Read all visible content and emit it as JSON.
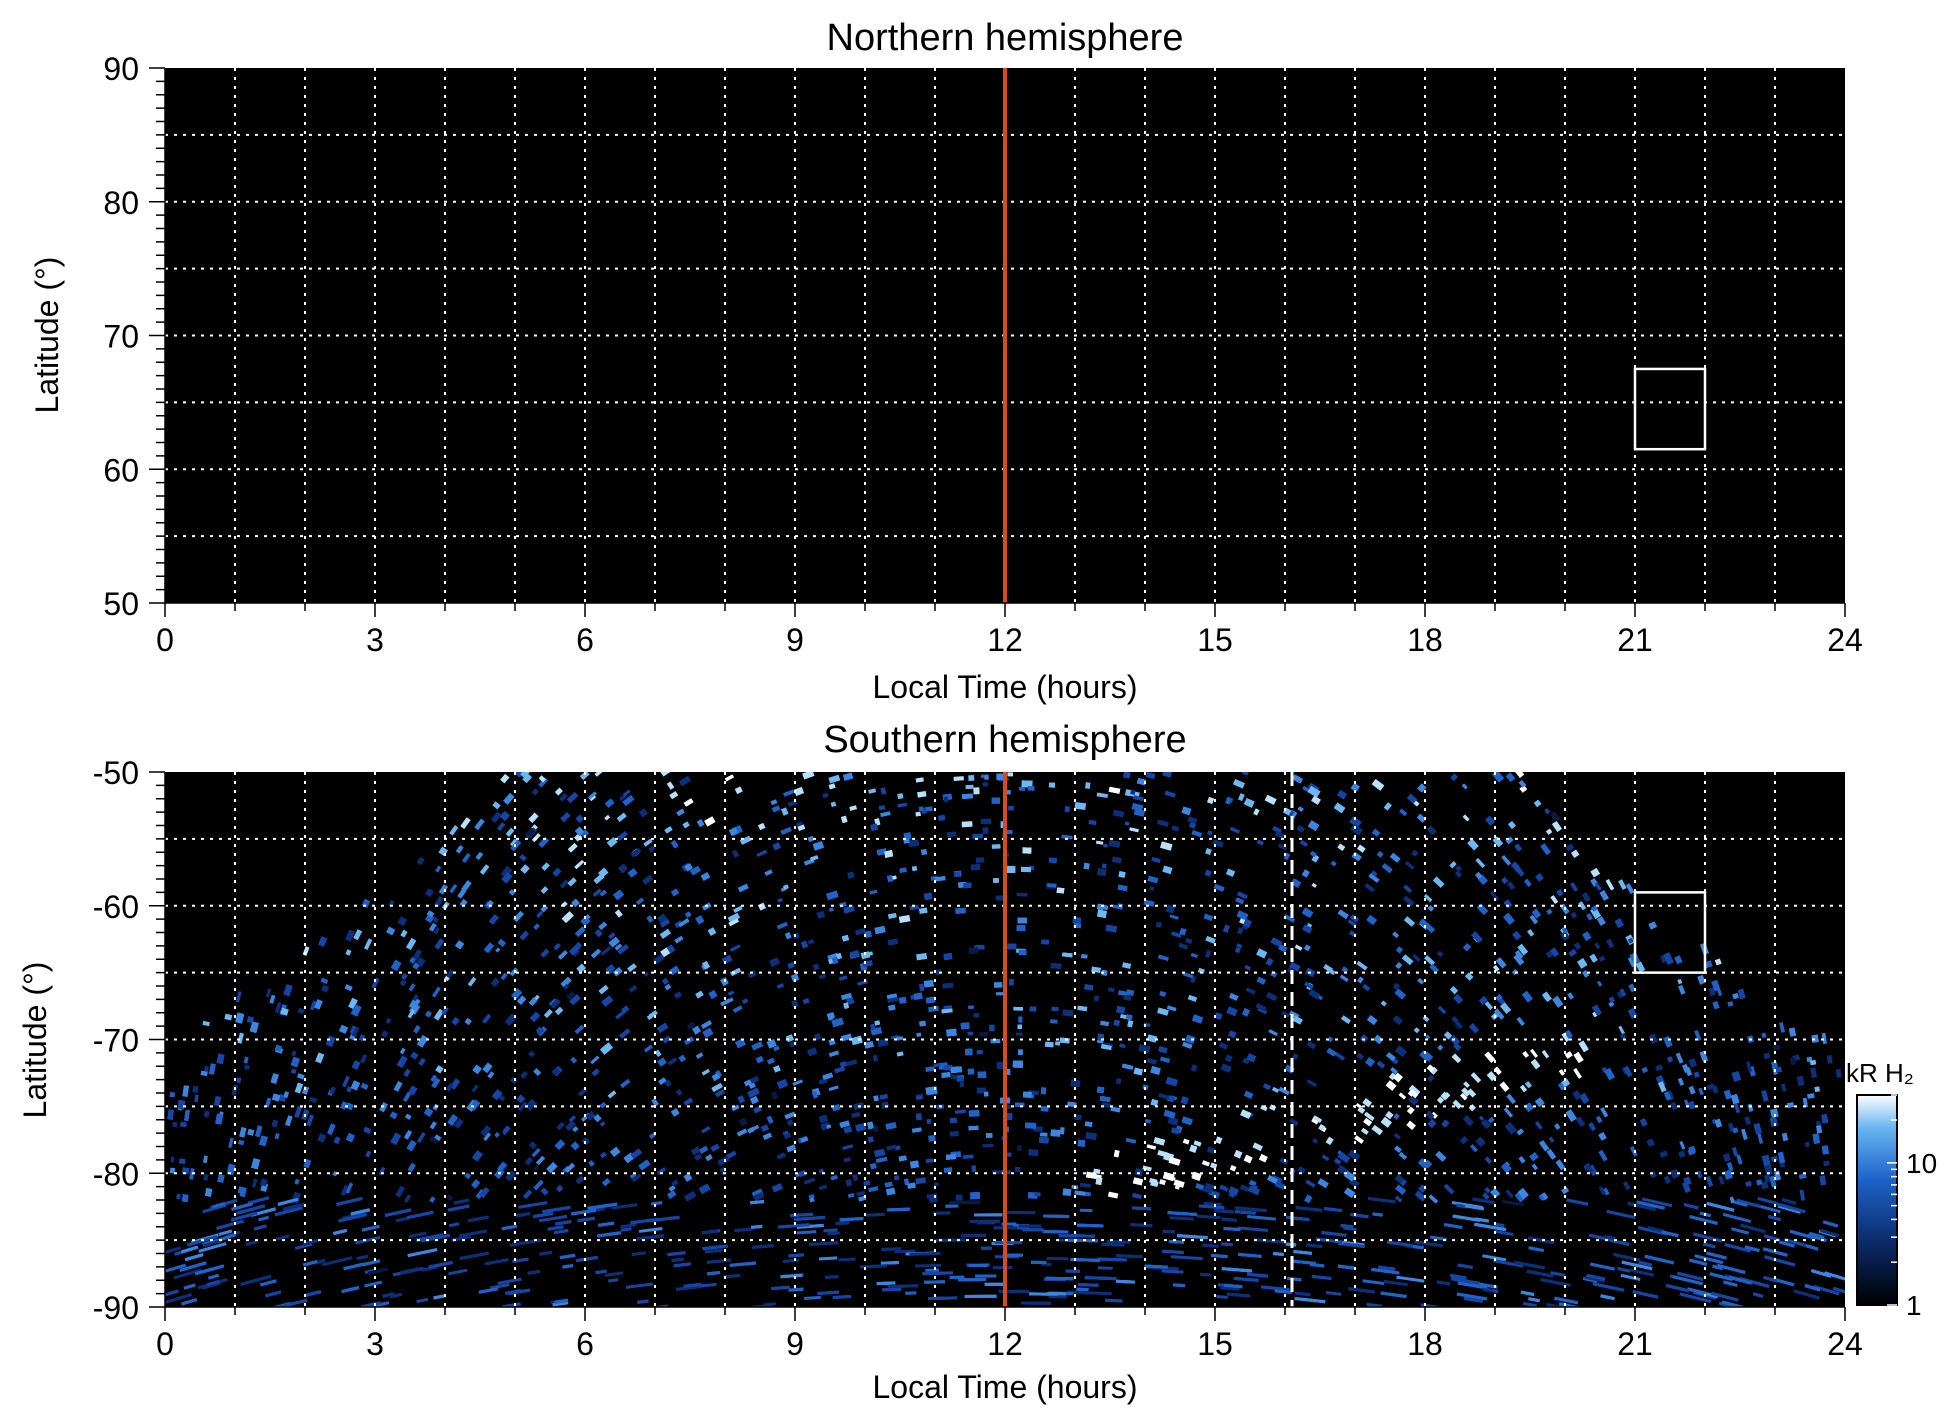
{
  "chart_data": [
    {
      "type": "heatmap",
      "title": "Northern hemisphere",
      "xlabel": "Local Time (hours)",
      "ylabel": "Latitude (°)",
      "xlim": [
        0,
        24
      ],
      "ylim": [
        50,
        90
      ],
      "xticks": [
        "0",
        "3",
        "6",
        "9",
        "12",
        "15",
        "18",
        "21",
        "24"
      ],
      "yticks": [
        "50",
        "60",
        "70",
        "80",
        "90"
      ],
      "grid": true,
      "background": "#000000",
      "emission": "none",
      "noon_marker": {
        "x": 12,
        "color": "#d94a1e"
      },
      "box": {
        "x": [
          21,
          22
        ],
        "y": [
          61.5,
          67.5
        ],
        "color": "#ffffff"
      }
    },
    {
      "type": "heatmap",
      "title": "Southern hemisphere",
      "xlabel": "Local Time (hours)",
      "ylabel": "Latitude (°)",
      "xlim": [
        0,
        24
      ],
      "ylim": [
        -90,
        -50
      ],
      "xticks": [
        "0",
        "3",
        "6",
        "9",
        "12",
        "15",
        "18",
        "21",
        "24"
      ],
      "yticks": [
        "-90",
        "-80",
        "-70",
        "-60",
        "-50"
      ],
      "grid": true,
      "background": "#000000",
      "emission": "speckled",
      "coverage_edge": {
        "lat_at_midnight": -70.5,
        "lat_at_4_5h": -50,
        "lat_at_19_5h": -50
      },
      "bright_arc": [
        {
          "x": 13.2,
          "y": -81
        },
        {
          "x": 15.5,
          "y": -77.5
        },
        {
          "x": 18,
          "y": -74
        },
        {
          "x": 20.5,
          "y": -70
        }
      ],
      "noon_marker": {
        "x": 12,
        "color": "#d94a1e"
      },
      "dashed_marker": {
        "x": 16.1,
        "color": "#ffffff"
      },
      "box": {
        "x": [
          21,
          22
        ],
        "y": [
          -65,
          -59
        ],
        "color": "#ffffff"
      },
      "colorbar": {
        "label": "kR H₂",
        "scale": "log",
        "range": [
          1,
          30
        ],
        "ticks": [
          "1",
          "10"
        ],
        "colors": [
          "#000000",
          "#0a2a6a",
          "#1f63c8",
          "#6cb8f2",
          "#ffffff"
        ]
      }
    }
  ]
}
